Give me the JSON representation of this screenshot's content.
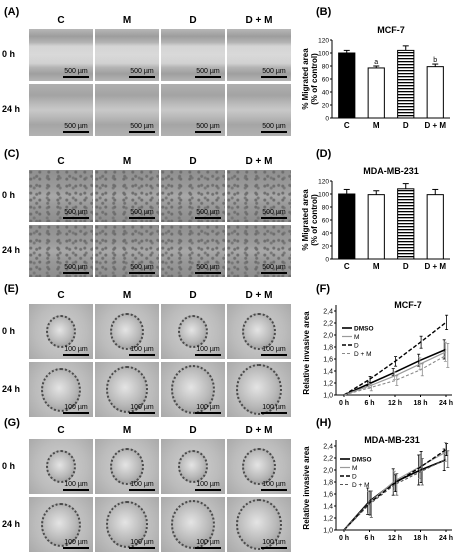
{
  "panels": {
    "A": "(A)",
    "B": "(B)",
    "C": "(C)",
    "D": "(D)",
    "E": "(E)",
    "F": "(F)",
    "G": "(G)",
    "H": "(H)"
  },
  "columns": [
    "C",
    "M",
    "D",
    "D + M"
  ],
  "rows": [
    "0 h",
    "24 h"
  ],
  "scale": {
    "wound": "500 µm",
    "spheroid": "100 µm"
  },
  "chart_data": [
    {
      "id": "B",
      "type": "bar",
      "title": "MCF-7",
      "categories": [
        "C",
        "M",
        "D",
        "D + M"
      ],
      "values": [
        100,
        77,
        104,
        79
      ],
      "errors": [
        4,
        3,
        7,
        4
      ],
      "annotations": [
        "",
        "a",
        "",
        "b"
      ],
      "fills": [
        "#000000",
        "#ffffff",
        "striped",
        "#ffffff"
      ],
      "ylabel": "% Migrated area\n(% of control)",
      "ylim": [
        0,
        120
      ],
      "yticks": [
        0,
        20,
        40,
        60,
        80,
        100,
        120
      ]
    },
    {
      "id": "D",
      "type": "bar",
      "title": "MDA-MB-231",
      "categories": [
        "C",
        "M",
        "D",
        "D + M"
      ],
      "values": [
        100,
        99,
        108,
        99
      ],
      "errors": [
        7,
        6,
        8,
        8
      ],
      "fills": [
        "#000000",
        "#ffffff",
        "striped",
        "#ffffff"
      ],
      "ylabel": "% Migrated area\n(% of control)",
      "ylim": [
        0,
        120
      ],
      "yticks": [
        0,
        20,
        40,
        60,
        80,
        100,
        120
      ]
    },
    {
      "id": "F",
      "type": "line",
      "title": "MCF-7",
      "x": [
        "0 h",
        "6 h",
        "12 h",
        "18 h",
        "24 h"
      ],
      "series": [
        {
          "name": "DMSO",
          "values": [
            1.0,
            1.19,
            1.38,
            1.58,
            1.76
          ],
          "errors": [
            0,
            0.04,
            0.06,
            0.1,
            0.16
          ],
          "dash": "",
          "color": "#000000",
          "width": 1.6
        },
        {
          "name": "M",
          "values": [
            1.0,
            1.15,
            1.32,
            1.52,
            1.72
          ],
          "errors": [
            0,
            0.04,
            0.06,
            0.1,
            0.16
          ],
          "dash": "",
          "color": "#9a9a9a",
          "width": 1.2
        },
        {
          "name": "D",
          "values": [
            1.0,
            1.26,
            1.56,
            1.88,
            2.21
          ],
          "errors": [
            0,
            0.05,
            0.08,
            0.1,
            0.12
          ],
          "dash": "4,2",
          "color": "#000000",
          "width": 1.4
        },
        {
          "name": "D + M",
          "values": [
            1.0,
            1.12,
            1.24,
            1.42,
            1.66
          ],
          "errors": [
            0,
            0.05,
            0.08,
            0.1,
            0.2
          ],
          "dash": "3,2",
          "color": "#8a8a8a",
          "width": 1.1
        }
      ],
      "ylabel": "Relative invasive area",
      "ylim": [
        1.0,
        2.4
      ],
      "yticks": [
        "1,0",
        "1,2",
        "1,4",
        "1,6",
        "1,8",
        "2,0",
        "2,2",
        "2,4"
      ]
    },
    {
      "id": "H",
      "type": "line",
      "title": "MDA-MB-231",
      "x": [
        "0 h",
        "6 h",
        "12 h",
        "18 h",
        "24 h"
      ],
      "series": [
        {
          "name": "DMSO",
          "values": [
            1.0,
            1.48,
            1.8,
            2.0,
            2.17
          ],
          "errors": [
            0,
            0.22,
            0.22,
            0.25,
            0.18
          ],
          "dash": "",
          "color": "#000000",
          "width": 1.6
        },
        {
          "name": "M",
          "values": [
            1.0,
            1.46,
            1.82,
            2.06,
            2.3
          ],
          "errors": [
            0,
            0.18,
            0.16,
            0.2,
            0.16
          ],
          "dash": "",
          "color": "#9a9a9a",
          "width": 1.2
        },
        {
          "name": "D",
          "values": [
            1.0,
            1.45,
            1.78,
            2.05,
            2.34
          ],
          "errors": [
            0,
            0.2,
            0.14,
            0.26,
            0.1
          ],
          "dash": "4,2",
          "color": "#000000",
          "width": 1.4
        },
        {
          "name": "D + M",
          "values": [
            1.0,
            1.43,
            1.76,
            1.97,
            2.18
          ],
          "errors": [
            0,
            0.22,
            0.18,
            0.22,
            0.14
          ],
          "dash": "3,2",
          "color": "#555555",
          "width": 1.1
        }
      ],
      "ylabel": "Relative invasive area",
      "ylim": [
        1.0,
        2.4
      ],
      "yticks": [
        "1,0",
        "1,2",
        "1,4",
        "1,6",
        "1,8",
        "2,0",
        "2,2",
        "2,4"
      ]
    }
  ]
}
